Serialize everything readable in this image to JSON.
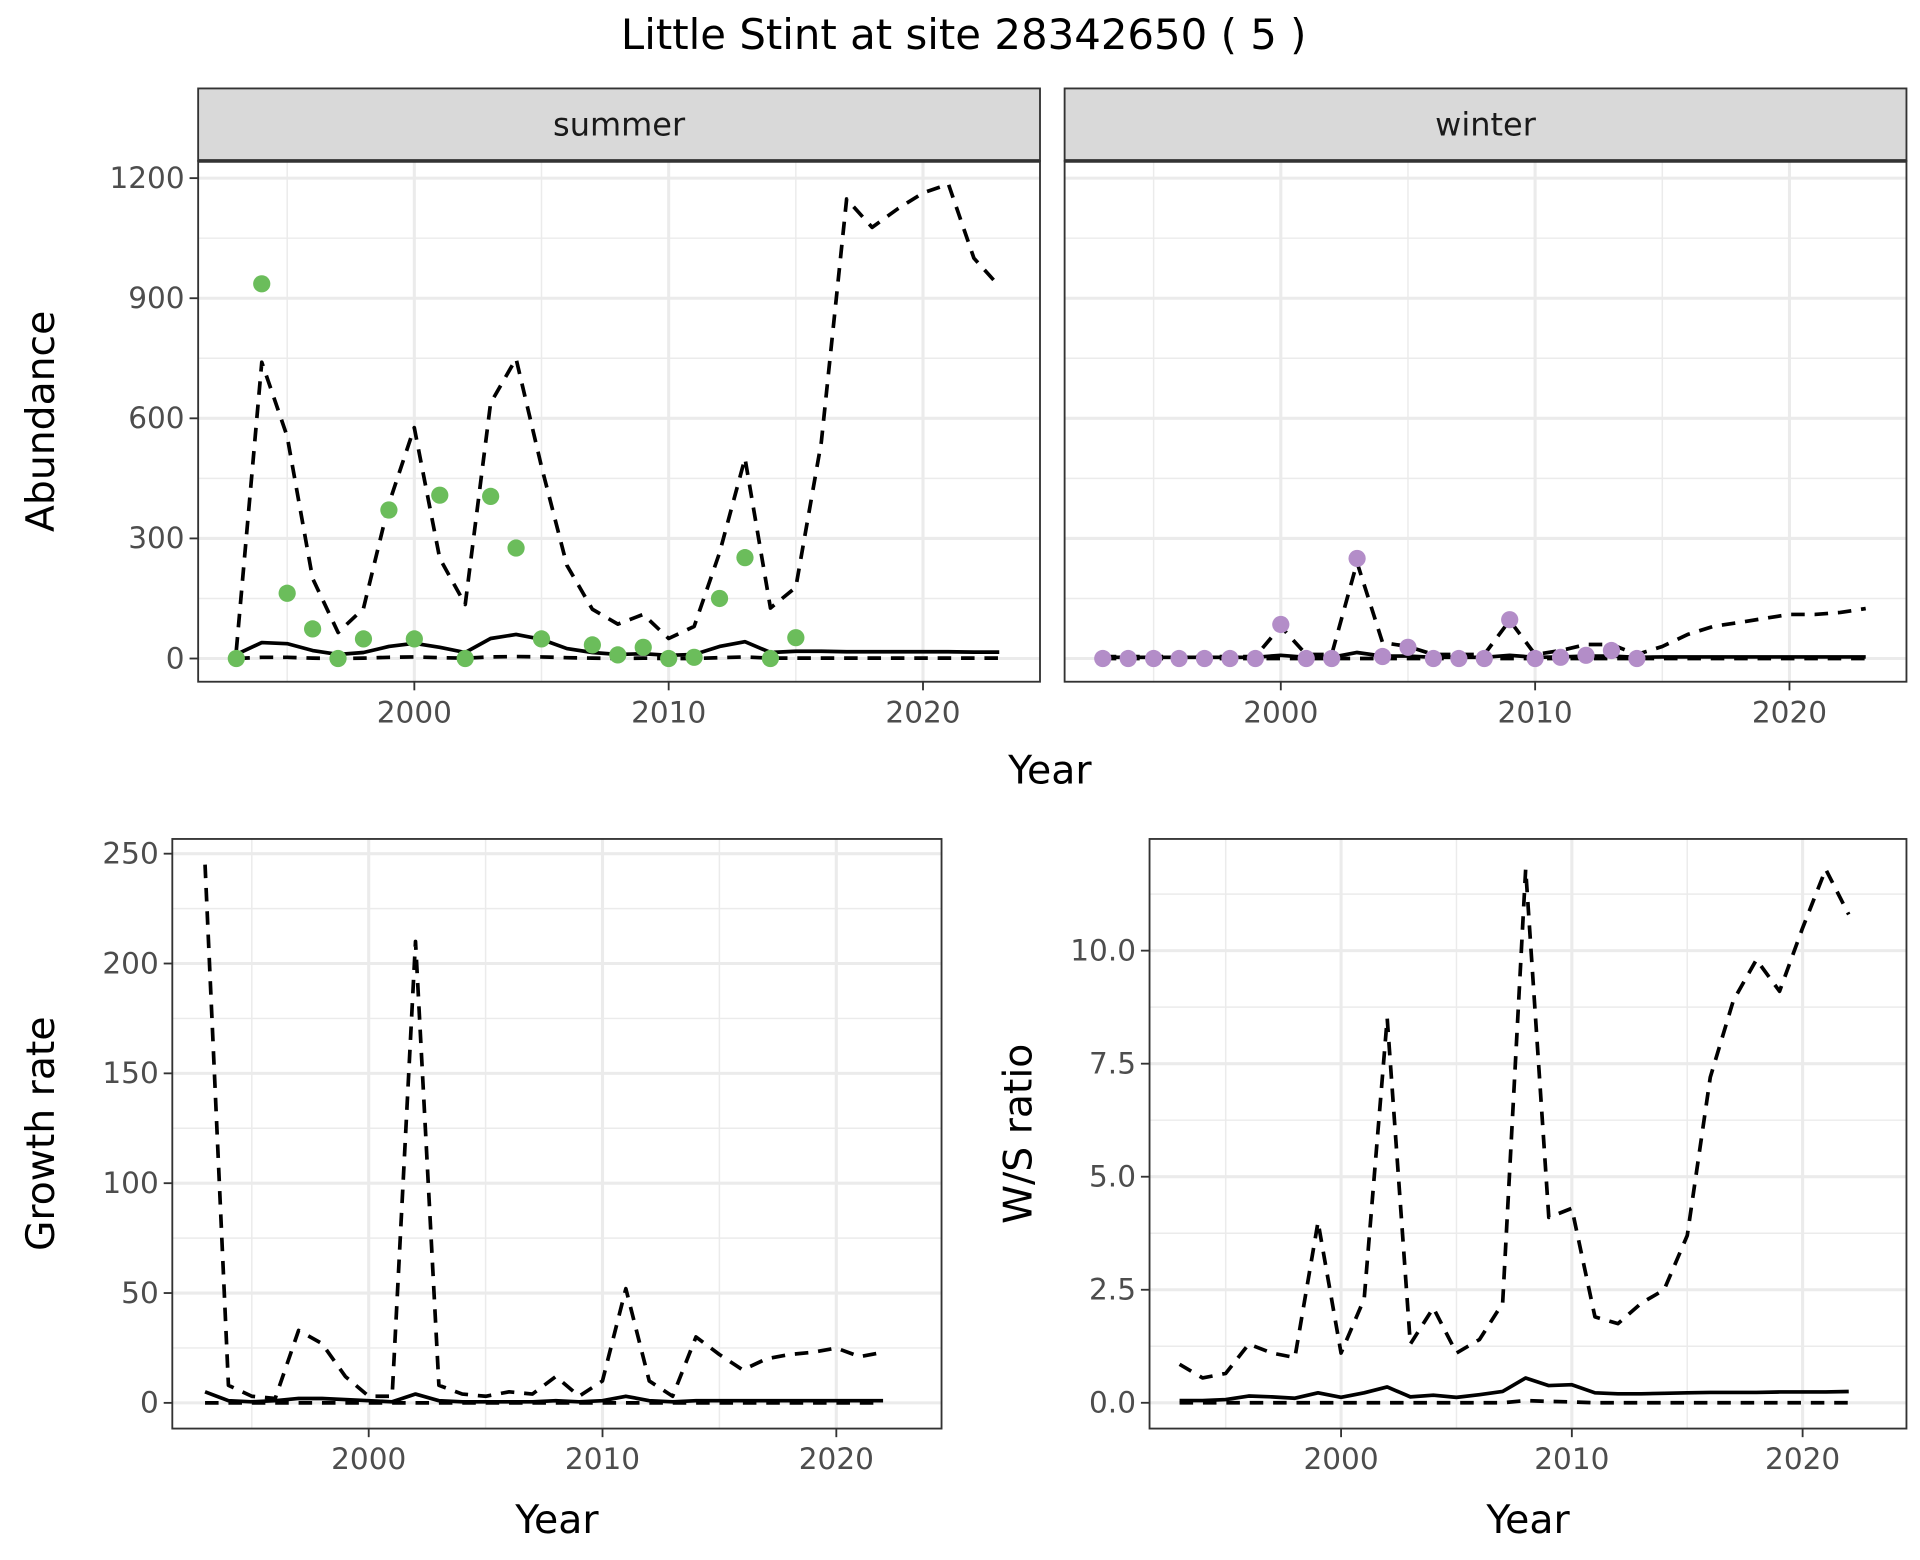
{
  "title": "Little Stint at site 28342650 ( 5 )",
  "colors": {
    "summer_points": "#6bbd5b",
    "winter_points": "#b38dc8",
    "line": "#000000",
    "strip": "#d9d9d9",
    "grid": "#ebebeb"
  },
  "chart_data": [
    {
      "type": "line",
      "panel": "summer",
      "strip_label": "summer",
      "ylabel": "Abundance",
      "xlabel": "Year",
      "xlim": [
        1991.5,
        2024.6
      ],
      "ylim": [
        -58,
        1243
      ],
      "xticks": [
        2000,
        2010,
        2020
      ],
      "yticks": [
        0,
        300,
        600,
        900,
        1200
      ],
      "xtick_labels": [
        "2000",
        "2010",
        "2020"
      ],
      "ytick_labels": [
        "0",
        "300",
        "600",
        "900",
        "1200"
      ],
      "x": [
        1993,
        1994,
        1995,
        1996,
        1997,
        1998,
        1999,
        2000,
        2001,
        2002,
        2003,
        2004,
        2005,
        2006,
        2007,
        2008,
        2009,
        2010,
        2011,
        2012,
        2013,
        2014,
        2015,
        2016,
        2017,
        2018,
        2019,
        2020,
        2021,
        2022,
        2023
      ],
      "series": [
        {
          "name": "upper",
          "style": "dashed",
          "values": [
            20,
            740,
            555,
            200,
            65,
            125,
            387,
            577,
            250,
            135,
            638,
            749,
            479,
            233,
            123,
            86,
            110,
            50,
            80,
            264,
            500,
            126,
            178,
            540,
            1148,
            1077,
            1123,
            1163,
            1185,
            1000,
            930
          ]
        },
        {
          "name": "mean",
          "style": "solid",
          "values": [
            10,
            40,
            37,
            20,
            10,
            15,
            30,
            38,
            28,
            15,
            50,
            60,
            48,
            25,
            15,
            10,
            12,
            8,
            10,
            30,
            42,
            15,
            18,
            18,
            17,
            17,
            17,
            17,
            17,
            16,
            16
          ]
        },
        {
          "name": "lower",
          "style": "dashed",
          "values": [
            0,
            3,
            3,
            1,
            0,
            1,
            3,
            4,
            2,
            1,
            4,
            5,
            4,
            2,
            1,
            0,
            1,
            0,
            0,
            2,
            4,
            1,
            1,
            1,
            1,
            1,
            1,
            1,
            1,
            1,
            1
          ]
        }
      ],
      "points": {
        "x": [
          1993,
          1994,
          1995,
          1996,
          1997,
          1998,
          1999,
          2000,
          2001,
          2002,
          2003,
          2004,
          2005,
          2007,
          2008,
          2009,
          2010,
          2011,
          2012,
          2013,
          2014,
          2015
        ],
        "y": [
          0,
          936,
          163,
          74,
          0,
          49,
          371,
          49,
          408,
          0,
          405,
          276,
          49,
          34,
          9,
          28,
          0,
          3,
          150,
          252,
          0,
          52
        ]
      }
    },
    {
      "type": "line",
      "panel": "winter",
      "strip_label": "winter",
      "ylabel": "",
      "xlabel": "Year",
      "xlim": [
        1991.5,
        2024.6
      ],
      "ylim": [
        -58,
        1243
      ],
      "xticks": [
        2000,
        2010,
        2020
      ],
      "yticks": [
        0,
        300,
        600,
        900,
        1200
      ],
      "xtick_labels": [
        "2000",
        "2010",
        "2020"
      ],
      "ytick_labels": [],
      "x": [
        1993,
        1994,
        1995,
        1996,
        1997,
        1998,
        1999,
        2000,
        2001,
        2002,
        2003,
        2004,
        2005,
        2006,
        2007,
        2008,
        2009,
        2010,
        2011,
        2012,
        2013,
        2014,
        2015,
        2016,
        2017,
        2018,
        2019,
        2020,
        2021,
        2022,
        2023
      ],
      "series": [
        {
          "name": "upper",
          "style": "dashed",
          "values": [
            5,
            5,
            5,
            5,
            5,
            5,
            5,
            80,
            10,
            10,
            240,
            40,
            30,
            10,
            10,
            10,
            95,
            10,
            20,
            35,
            35,
            10,
            30,
            60,
            80,
            90,
            100,
            110,
            110,
            115,
            125
          ]
        },
        {
          "name": "mean",
          "style": "solid",
          "values": [
            3,
            3,
            3,
            3,
            3,
            3,
            3,
            8,
            3,
            3,
            15,
            6,
            6,
            3,
            3,
            3,
            8,
            3,
            4,
            6,
            6,
            3,
            4,
            4,
            4,
            4,
            4,
            4,
            4,
            4,
            4
          ]
        },
        {
          "name": "lower",
          "style": "dashed",
          "values": [
            0,
            0,
            0,
            0,
            0,
            0,
            0,
            0,
            0,
            0,
            0,
            0,
            0,
            0,
            0,
            0,
            0,
            0,
            0,
            0,
            0,
            0,
            0,
            0,
            0,
            0,
            0,
            0,
            0,
            0,
            0
          ]
        }
      ],
      "points": {
        "x": [
          1993,
          1994,
          1995,
          1996,
          1997,
          1998,
          1999,
          2000,
          2001,
          2002,
          2003,
          2004,
          2005,
          2006,
          2007,
          2008,
          2009,
          2010,
          2011,
          2012,
          2013,
          2014
        ],
        "y": [
          0,
          0,
          0,
          0,
          0,
          0,
          0,
          85,
          0,
          0,
          250,
          5,
          28,
          0,
          0,
          0,
          97,
          0,
          3,
          8,
          20,
          0
        ]
      }
    },
    {
      "type": "line",
      "panel": "growth",
      "ylabel": "Growth rate",
      "xlabel": "Year",
      "xlim": [
        1991.6,
        2024.5
      ],
      "ylim": [
        -11.7,
        256.7
      ],
      "xticks": [
        2000,
        2010,
        2020
      ],
      "yticks": [
        0,
        50,
        100,
        150,
        200,
        250
      ],
      "xtick_labels": [
        "2000",
        "2010",
        "2020"
      ],
      "ytick_labels": [
        "0",
        "50",
        "100",
        "150",
        "200",
        "250"
      ],
      "x": [
        1993,
        1994,
        1995,
        1996,
        1997,
        1998,
        1999,
        2000,
        2001,
        2002,
        2003,
        2004,
        2005,
        2006,
        2007,
        2008,
        2009,
        2010,
        2011,
        2012,
        2013,
        2014,
        2015,
        2016,
        2017,
        2018,
        2019,
        2020,
        2021,
        2022
      ],
      "series": [
        {
          "name": "upper",
          "style": "dashed",
          "values": [
            245,
            8,
            3,
            2,
            33,
            27,
            12,
            3,
            3,
            210,
            8,
            4,
            3,
            5,
            4,
            12,
            3,
            10,
            52,
            10,
            3,
            30,
            22,
            15,
            20,
            22,
            23,
            25,
            21,
            23
          ]
        },
        {
          "name": "mean",
          "style": "solid",
          "values": [
            5,
            1,
            0.5,
            1,
            2,
            2,
            1.5,
            1,
            0.5,
            4,
            1,
            0.5,
            0.5,
            0.5,
            0.5,
            1,
            0.5,
            1,
            3,
            1,
            0.5,
            1,
            1,
            1,
            1,
            1,
            1,
            1,
            1,
            1
          ]
        },
        {
          "name": "lower",
          "style": "dashed",
          "values": [
            0,
            0,
            0,
            0,
            0,
            0,
            0,
            0,
            0,
            0,
            0,
            0,
            0,
            0,
            0,
            0,
            0,
            0,
            0,
            0,
            0,
            0,
            0,
            0,
            0,
            0,
            0,
            0,
            0,
            0
          ]
        }
      ]
    },
    {
      "type": "line",
      "panel": "ws_ratio",
      "ylabel": "W/S ratio",
      "xlabel": "Year",
      "xlim": [
        1991.7,
        2024.5
      ],
      "ylim": [
        -0.57,
        12.47
      ],
      "xticks": [
        2000,
        2010,
        2020
      ],
      "yticks": [
        0,
        2.5,
        5,
        7.5,
        10
      ],
      "xtick_labels": [
        "2000",
        "2010",
        "2020"
      ],
      "ytick_labels": [
        "0.0",
        "2.5",
        "5.0",
        "7.5",
        "10.0"
      ],
      "x": [
        1993,
        1994,
        1995,
        1996,
        1997,
        1998,
        1999,
        2000,
        2001,
        2002,
        2003,
        2004,
        2005,
        2006,
        2007,
        2008,
        2009,
        2010,
        2011,
        2012,
        2013,
        2014,
        2015,
        2016,
        2017,
        2018,
        2019,
        2020,
        2021,
        2022
      ],
      "series": [
        {
          "name": "upper",
          "style": "dashed",
          "values": [
            0.85,
            0.55,
            0.65,
            1.3,
            1.1,
            1.0,
            4.0,
            1.1,
            2.3,
            8.5,
            1.3,
            2.1,
            1.1,
            1.4,
            2.2,
            11.8,
            4.1,
            4.3,
            1.9,
            1.75,
            2.2,
            2.5,
            3.7,
            7.2,
            8.9,
            9.8,
            9.1,
            10.5,
            11.8,
            10.8
          ]
        },
        {
          "name": "mean",
          "style": "solid",
          "values": [
            0.05,
            0.05,
            0.07,
            0.15,
            0.13,
            0.1,
            0.22,
            0.12,
            0.22,
            0.35,
            0.13,
            0.17,
            0.12,
            0.18,
            0.25,
            0.55,
            0.38,
            0.4,
            0.22,
            0.2,
            0.2,
            0.21,
            0.22,
            0.23,
            0.23,
            0.23,
            0.24,
            0.24,
            0.24,
            0.25
          ]
        },
        {
          "name": "lower",
          "style": "dashed",
          "values": [
            0,
            0,
            0,
            0,
            0,
            0,
            0,
            0,
            0,
            0,
            0,
            0,
            0,
            0,
            0,
            0.05,
            0.03,
            0.02,
            0,
            0,
            0,
            0,
            0,
            0,
            0,
            0,
            0,
            0,
            0,
            0
          ]
        }
      ]
    }
  ]
}
